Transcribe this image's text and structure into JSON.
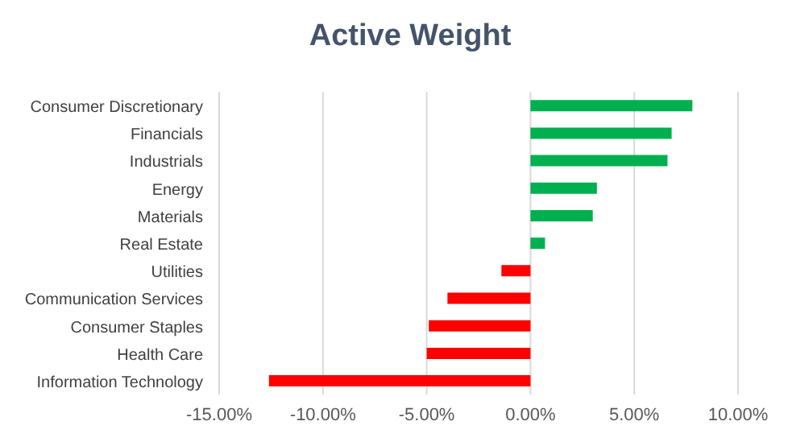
{
  "chart_data": {
    "type": "bar",
    "orientation": "horizontal",
    "title": "Active Weight",
    "categories": [
      "Consumer Discretionary",
      "Financials",
      "Industrials",
      "Energy",
      "Materials",
      "Real Estate",
      "Utilities",
      "Communication Services",
      "Consumer Staples",
      "Health Care",
      "Information Technology"
    ],
    "values": [
      7.8,
      6.8,
      6.6,
      3.2,
      3.0,
      0.7,
      -1.4,
      -4.0,
      -4.9,
      -5.0,
      -12.6
    ],
    "colors": [
      "#00b050",
      "#00b050",
      "#00b050",
      "#00b050",
      "#00b050",
      "#00b050",
      "#ff0000",
      "#ff0000",
      "#ff0000",
      "#ff0000",
      "#ff0000"
    ],
    "xlim": [
      -15,
      10
    ],
    "xticks": [
      {
        "value": -15,
        "label": "-15.00%"
      },
      {
        "value": -10,
        "label": "-10.00%"
      },
      {
        "value": -5,
        "label": "-5.00%"
      },
      {
        "value": 0,
        "label": "0.00%"
      },
      {
        "value": 5,
        "label": "5.00%"
      },
      {
        "value": 10,
        "label": "10.00%"
      }
    ],
    "grid": "x"
  }
}
